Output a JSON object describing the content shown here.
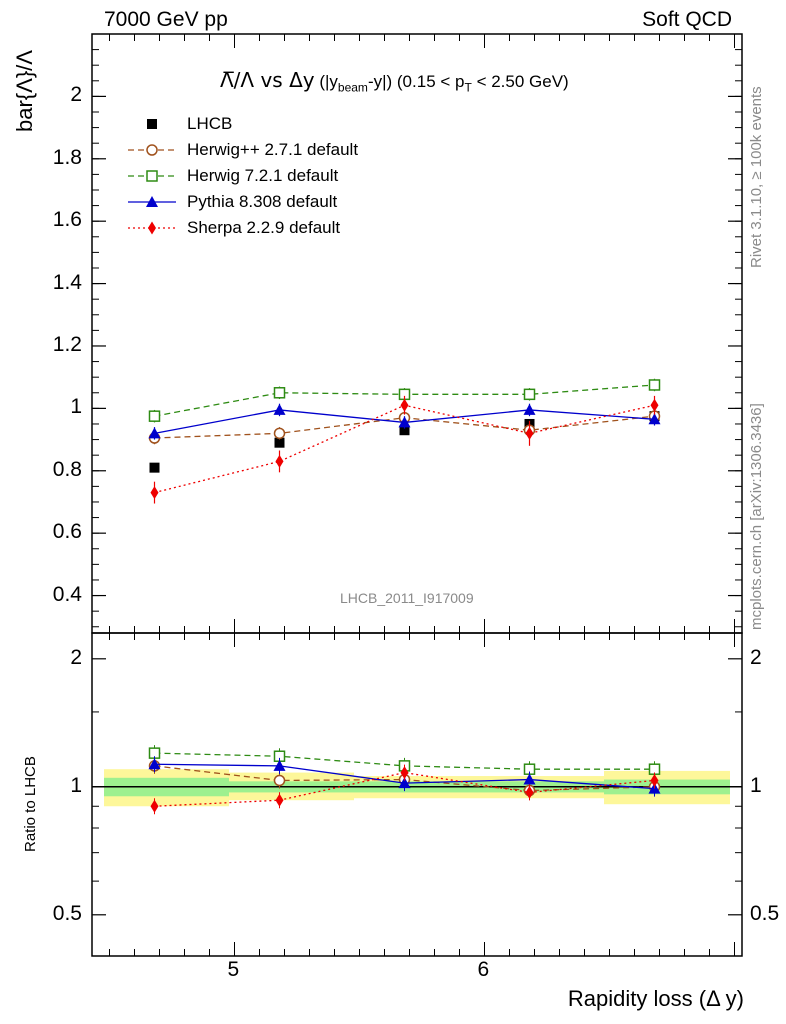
{
  "header": {
    "left": "7000 GeV pp",
    "right": "Soft QCD"
  },
  "side_labels": {
    "rivet": "Rivet 3.1.10, ≥ 100k events",
    "mcplots": "mcplots.cern.ch [arXiv:1306.3436]"
  },
  "watermark": "LHCB_2011_I917009",
  "chart_data": [
    {
      "type": "line",
      "title": "Λ̅/Λ vs Δy (|y_beam-y|) (0.15 < p_T < 2.50 GeV)",
      "title_parts": {
        "main": "Λ̅/Λ vs Δy",
        "sub1": "(|y",
        "sub1s": "beam",
        "sub2": "-y|) (0.15 < p",
        "sub2s": "T",
        "sub3": "< 2.50 GeV)"
      },
      "ylabel": "bar{Λ}/Λ",
      "xlabel": "Rapidity loss (Δ y)",
      "xlim": [
        4.43,
        7.03
      ],
      "ylim": [
        0.28,
        2.2
      ],
      "yticks": [
        0.4,
        0.6,
        0.8,
        1.0,
        1.2,
        1.4,
        1.6,
        1.8,
        2.0
      ],
      "yticklabels": [
        "0.4",
        "0.6",
        "0.8",
        "1",
        "1.2",
        "1.4",
        "1.6",
        "1.8",
        "2"
      ],
      "legend_position": "top-left",
      "x": [
        4.68,
        5.18,
        5.68,
        6.18,
        6.68
      ],
      "series": [
        {
          "name": "LHCB",
          "color": "#000000",
          "marker": "square",
          "line": "none",
          "values": [
            0.81,
            0.89,
            0.93,
            0.95,
            0.975
          ],
          "errors": [
            0.005,
            0.01,
            0.01,
            0.01,
            0.01
          ]
        },
        {
          "name": "Herwig++ 2.7.1 default",
          "color": "#a0521d",
          "marker": "open-circle",
          "line": "dashed",
          "values": [
            0.905,
            0.92,
            0.97,
            0.93,
            0.975
          ],
          "errors": [
            0.02,
            0.02,
            0.02,
            0.02,
            0.02
          ]
        },
        {
          "name": "Herwig 7.2.1 default",
          "color": "#2e8b13",
          "marker": "open-square",
          "line": "dashed",
          "values": [
            0.975,
            1.05,
            1.045,
            1.045,
            1.075
          ],
          "errors": [
            0.02,
            0.02,
            0.02,
            0.02,
            0.02
          ]
        },
        {
          "name": "Pythia 8.308 default",
          "color": "#0000cc",
          "marker": "triangle",
          "line": "solid",
          "values": [
            0.92,
            0.995,
            0.955,
            0.995,
            0.965
          ],
          "errors": [
            0.02,
            0.02,
            0.02,
            0.02,
            0.02
          ]
        },
        {
          "name": "Sherpa 2.2.9 default",
          "color": "#ee0000",
          "marker": "diamond",
          "line": "dotted",
          "values": [
            0.73,
            0.83,
            1.01,
            0.92,
            1.01
          ],
          "errors": [
            0.035,
            0.035,
            0.03,
            0.04,
            0.03
          ]
        }
      ]
    },
    {
      "type": "line",
      "ylabel": "Ratio to LHCB",
      "xlabel": "Rapidity loss (Δ y)",
      "ylog": true,
      "ylim": [
        0.4,
        2.3
      ],
      "xlim": [
        4.43,
        7.03
      ],
      "yticks": [
        0.5,
        1,
        2
      ],
      "yticklabels": [
        "0.5",
        "1",
        "2"
      ],
      "xticks": [
        5,
        6
      ],
      "xticklabels": [
        "5",
        "6"
      ],
      "x": [
        4.68,
        5.18,
        5.68,
        6.18,
        6.68
      ],
      "bin_edges": [
        4.43,
        4.93,
        5.43,
        5.93,
        6.43,
        7.03
      ],
      "band_stat": [
        [
          0.95,
          1.05
        ],
        [
          0.97,
          1.03
        ],
        [
          0.97,
          1.03
        ],
        [
          0.97,
          1.03
        ],
        [
          0.96,
          1.04
        ]
      ],
      "band_total": [
        [
          0.9,
          1.1
        ],
        [
          0.93,
          1.08
        ],
        [
          0.94,
          1.06
        ],
        [
          0.94,
          1.06
        ],
        [
          0.91,
          1.09
        ]
      ],
      "series": [
        {
          "name": "Herwig++ 2.7.1 default",
          "color": "#a0521d",
          "marker": "open-circle",
          "line": "dashed",
          "values": [
            1.12,
            1.035,
            1.04,
            0.98,
            1.0
          ]
        },
        {
          "name": "Herwig 7.2.1 default",
          "color": "#2e8b13",
          "marker": "open-square",
          "line": "dashed",
          "values": [
            1.2,
            1.18,
            1.12,
            1.1,
            1.1
          ]
        },
        {
          "name": "Pythia 8.308 default",
          "color": "#0000cc",
          "marker": "triangle",
          "line": "solid",
          "values": [
            1.13,
            1.12,
            1.02,
            1.04,
            0.99
          ]
        },
        {
          "name": "Sherpa 2.2.9 default",
          "color": "#ee0000",
          "marker": "diamond",
          "line": "dotted",
          "values": [
            0.9,
            0.93,
            1.08,
            0.97,
            1.035
          ]
        }
      ]
    }
  ]
}
